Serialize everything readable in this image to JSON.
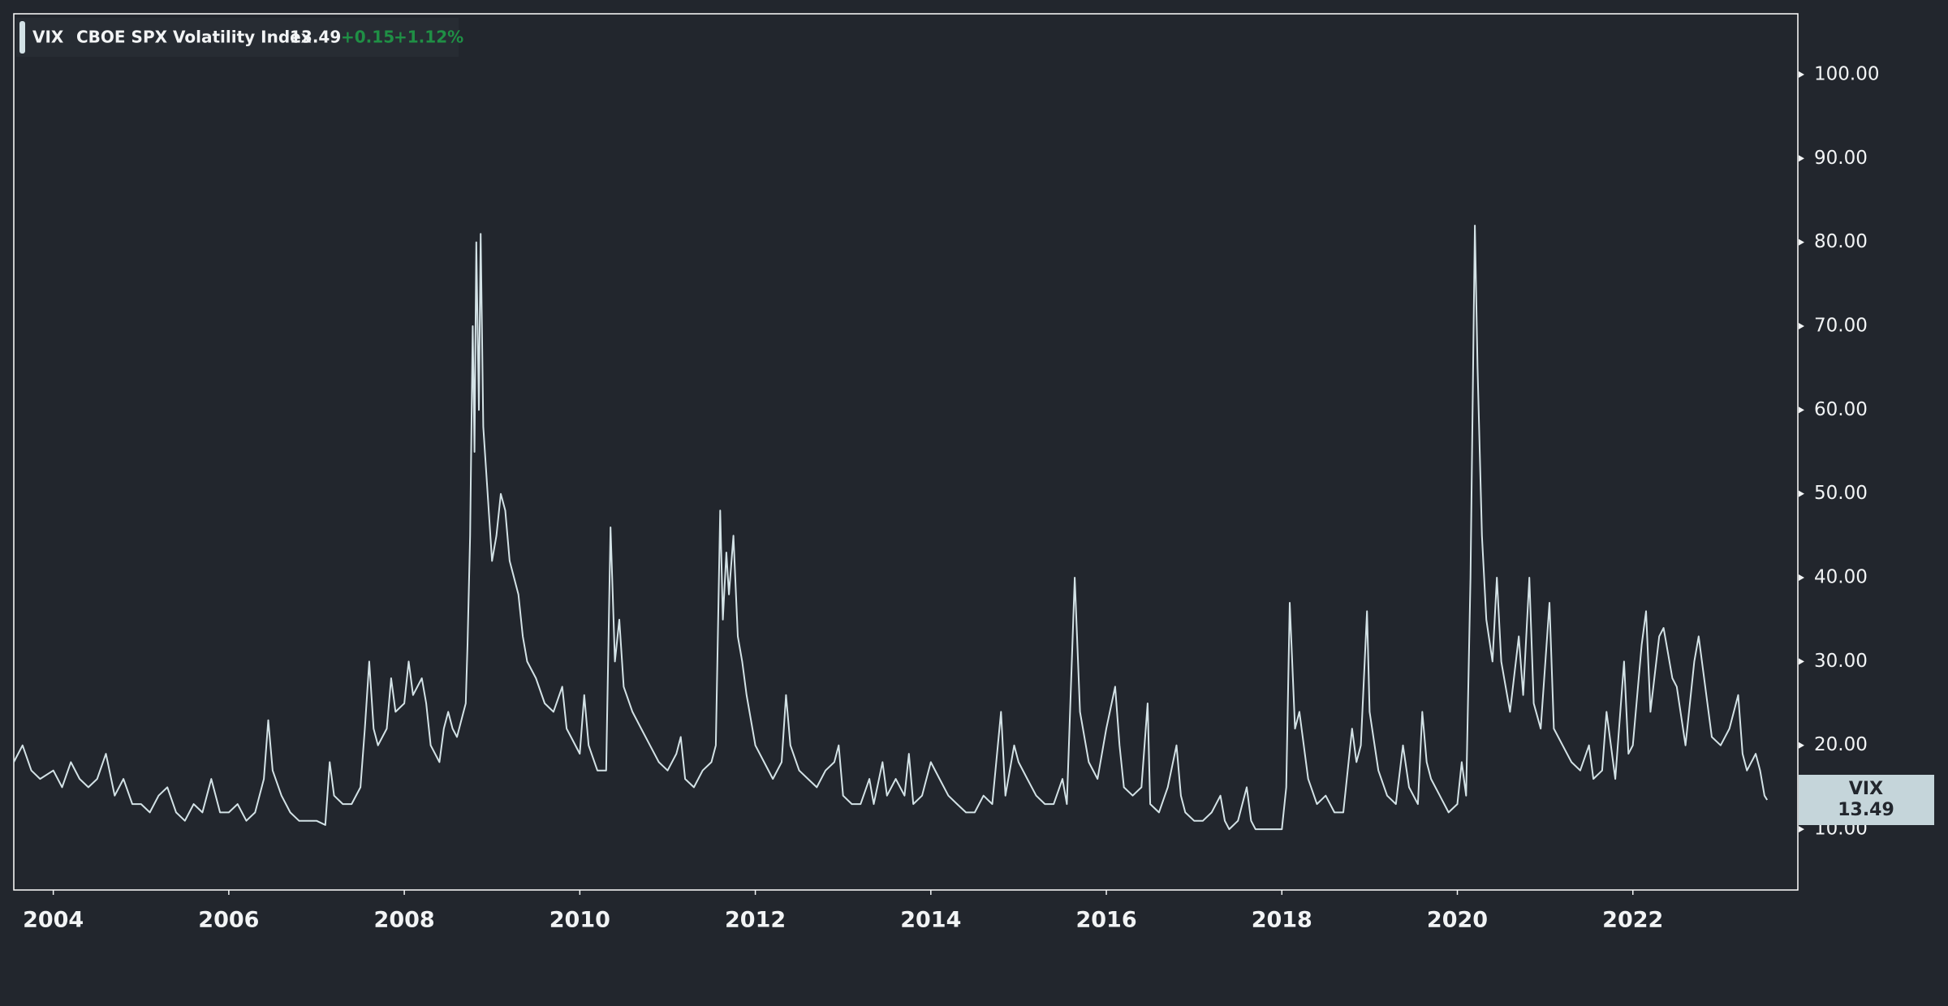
{
  "chart_data": {
    "type": "line",
    "legend": {
      "symbol": "VIX",
      "description": "CBOE SPX Volatility Index",
      "change": "+0.15",
      "change_pct": "+1.12%"
    },
    "xlim": [
      2003.55,
      2023.88
    ],
    "xticks": [
      2004,
      2006,
      2008,
      2010,
      2012,
      2014,
      2016,
      2018,
      2020,
      2022
    ],
    "ylim": [
      2.75,
      107.25
    ],
    "yticks": [
      {
        "value": 10,
        "label": "10.00"
      },
      {
        "value": 20,
        "label": "20.00"
      },
      {
        "value": 30,
        "label": "30.00"
      },
      {
        "value": 40,
        "label": "40.00"
      },
      {
        "value": 50,
        "label": "50.00"
      },
      {
        "value": 60,
        "label": "60.00"
      },
      {
        "value": 70,
        "label": "70.00"
      },
      {
        "value": 80,
        "label": "80.00"
      },
      {
        "value": 90,
        "label": "90.00"
      },
      {
        "value": 100,
        "label": "100.00"
      }
    ],
    "grid": false,
    "x": [
      2003.55,
      2003.65,
      2003.75,
      2003.85,
      2004.0,
      2004.1,
      2004.2,
      2004.3,
      2004.4,
      2004.5,
      2004.6,
      2004.7,
      2004.8,
      2004.9,
      2005.0,
      2005.1,
      2005.2,
      2005.3,
      2005.4,
      2005.5,
      2005.6,
      2005.7,
      2005.8,
      2005.9,
      2006.0,
      2006.1,
      2006.2,
      2006.3,
      2006.4,
      2006.45,
      2006.5,
      2006.6,
      2006.7,
      2006.8,
      2006.9,
      2007.0,
      2007.1,
      2007.15,
      2007.2,
      2007.3,
      2007.4,
      2007.5,
      2007.55,
      2007.6,
      2007.65,
      2007.7,
      2007.8,
      2007.85,
      2007.9,
      2008.0,
      2008.05,
      2008.1,
      2008.2,
      2008.25,
      2008.3,
      2008.4,
      2008.45,
      2008.5,
      2008.55,
      2008.6,
      2008.7,
      2008.72,
      2008.75,
      2008.78,
      2008.8,
      2008.82,
      2008.85,
      2008.87,
      2008.9,
      2008.95,
      2009.0,
      2009.05,
      2009.1,
      2009.15,
      2009.2,
      2009.3,
      2009.35,
      2009.4,
      2009.5,
      2009.6,
      2009.7,
      2009.8,
      2009.85,
      2009.9,
      2010.0,
      2010.05,
      2010.1,
      2010.2,
      2010.3,
      2010.35,
      2010.4,
      2010.45,
      2010.5,
      2010.6,
      2010.7,
      2010.8,
      2010.9,
      2011.0,
      2011.1,
      2011.15,
      2011.2,
      2011.3,
      2011.4,
      2011.5,
      2011.55,
      2011.6,
      2011.63,
      2011.67,
      2011.7,
      2011.75,
      2011.8,
      2011.85,
      2011.9,
      2012.0,
      2012.1,
      2012.2,
      2012.3,
      2012.35,
      2012.4,
      2012.5,
      2012.6,
      2012.7,
      2012.8,
      2012.9,
      2012.95,
      2013.0,
      2013.1,
      2013.2,
      2013.3,
      2013.35,
      2013.45,
      2013.5,
      2013.6,
      2013.7,
      2013.75,
      2013.8,
      2013.9,
      2014.0,
      2014.1,
      2014.2,
      2014.3,
      2014.4,
      2014.5,
      2014.6,
      2014.7,
      2014.8,
      2014.85,
      2014.95,
      2015.0,
      2015.1,
      2015.2,
      2015.3,
      2015.4,
      2015.5,
      2015.55,
      2015.64,
      2015.7,
      2015.8,
      2015.9,
      2016.0,
      2016.1,
      2016.15,
      2016.2,
      2016.3,
      2016.4,
      2016.47,
      2016.5,
      2016.6,
      2016.7,
      2016.8,
      2016.85,
      2016.9,
      2017.0,
      2017.1,
      2017.2,
      2017.3,
      2017.35,
      2017.4,
      2017.5,
      2017.6,
      2017.65,
      2017.7,
      2017.8,
      2017.9,
      2018.0,
      2018.05,
      2018.09,
      2018.15,
      2018.2,
      2018.3,
      2018.4,
      2018.5,
      2018.6,
      2018.7,
      2018.8,
      2018.85,
      2018.9,
      2018.97,
      2019.0,
      2019.1,
      2019.2,
      2019.3,
      2019.38,
      2019.45,
      2019.55,
      2019.6,
      2019.65,
      2019.7,
      2019.8,
      2019.9,
      2020.0,
      2020.05,
      2020.1,
      2020.15,
      2020.2,
      2020.23,
      2020.28,
      2020.33,
      2020.4,
      2020.45,
      2020.5,
      2020.6,
      2020.7,
      2020.75,
      2020.82,
      2020.87,
      2020.95,
      2021.05,
      2021.1,
      2021.2,
      2021.3,
      2021.4,
      2021.5,
      2021.55,
      2021.65,
      2021.7,
      2021.8,
      2021.9,
      2021.95,
      2022.0,
      2022.1,
      2022.15,
      2022.2,
      2022.3,
      2022.35,
      2022.45,
      2022.5,
      2022.6,
      2022.7,
      2022.75,
      2022.8,
      2022.9,
      2023.0,
      2023.1,
      2023.2,
      2023.25,
      2023.3,
      2023.4,
      2023.45,
      2023.5,
      2023.53
    ],
    "series": [
      {
        "name": "VIX",
        "color": "#d3e2e6",
        "values": [
          18,
          20,
          17,
          16,
          17,
          15,
          18,
          16,
          15,
          16,
          19,
          14,
          16,
          13,
          13,
          12,
          14,
          15,
          12,
          11,
          13,
          12,
          16,
          12,
          12,
          13,
          11,
          12,
          16,
          23,
          17,
          14,
          12,
          11,
          11,
          11,
          10.5,
          18,
          14,
          13,
          13,
          15,
          22,
          30,
          22,
          20,
          22,
          28,
          24,
          25,
          30,
          26,
          28,
          25,
          20,
          18,
          22,
          24,
          22,
          21,
          25,
          32,
          45,
          70,
          55,
          80,
          60,
          81,
          58,
          50,
          42,
          45,
          50,
          48,
          42,
          38,
          33,
          30,
          28,
          25,
          24,
          27,
          22,
          21,
          19,
          26,
          20,
          17,
          17,
          46,
          30,
          35,
          27,
          24,
          22,
          20,
          18,
          17,
          19,
          21,
          16,
          15,
          17,
          18,
          20,
          48,
          35,
          43,
          38,
          45,
          33,
          30,
          26,
          20,
          18,
          16,
          18,
          26,
          20,
          17,
          16,
          15,
          17,
          18,
          20,
          14,
          13,
          13,
          16,
          13,
          18,
          14,
          16,
          14,
          19,
          13,
          14,
          18,
          16,
          14,
          13,
          12,
          12,
          14,
          13,
          24,
          14,
          20,
          18,
          16,
          14,
          13,
          13,
          16,
          13,
          40,
          24,
          18,
          16,
          22,
          27,
          20,
          15,
          14,
          15,
          25,
          13,
          12,
          15,
          20,
          14,
          12,
          11,
          11,
          12,
          14,
          11,
          10,
          11,
          15,
          11,
          10,
          10,
          10,
          10,
          15,
          37,
          22,
          24,
          16,
          13,
          14,
          12,
          12,
          22,
          18,
          20,
          36,
          24,
          17,
          14,
          13,
          20,
          15,
          13,
          24,
          18,
          16,
          14,
          12,
          13,
          18,
          14,
          40,
          82,
          65,
          45,
          35,
          30,
          40,
          30,
          24,
          33,
          26,
          40,
          25,
          22,
          37,
          22,
          20,
          18,
          17,
          20,
          16,
          17,
          24,
          16,
          30,
          19,
          20,
          32,
          36,
          24,
          33,
          34,
          28,
          27,
          20,
          30,
          33,
          29,
          21,
          20,
          22,
          26,
          19,
          17,
          19,
          17,
          14,
          13.49
        ]
      }
    ]
  }
}
